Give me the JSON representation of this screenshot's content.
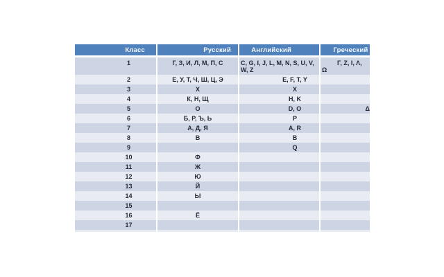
{
  "chart_data": {
    "type": "table",
    "columns": [
      "Класс",
      "Русский",
      "Английский",
      "Греческий"
    ],
    "rows": [
      [
        "1",
        "Г, З, И, Л, М, П, С",
        "C, G, I, J, L, M, N, S, U, V,\nW, Z",
        "Γ, Ζ, Ι, Λ,\nΩ"
      ],
      [
        "2",
        "Е, У, Т, Ч, Ш, Ц, Э",
        "E, F, T, Y",
        ""
      ],
      [
        "3",
        "Х",
        "X",
        ""
      ],
      [
        "4",
        "К, Н, Щ",
        "H, K",
        ""
      ],
      [
        "5",
        "О",
        "D, O",
        "Δ, Ο"
      ],
      [
        "6",
        "Б, Р, Ъ, Ь",
        "P",
        ""
      ],
      [
        "7",
        "А, Д, Я",
        "A, R",
        ""
      ],
      [
        "8",
        "В",
        "B",
        ""
      ],
      [
        "9",
        "",
        "Q",
        ""
      ],
      [
        "10",
        "Ф",
        "",
        ""
      ],
      [
        "11",
        "Ж",
        "",
        ""
      ],
      [
        "12",
        "Ю",
        "",
        ""
      ],
      [
        "13",
        "Й",
        "",
        ""
      ],
      [
        "14",
        "Ы",
        "",
        ""
      ],
      [
        "15",
        "",
        "",
        ""
      ],
      [
        "16",
        "Ё",
        "",
        ""
      ],
      [
        "17",
        "",
        "",
        ""
      ],
      [
        "",
        "",
        "",
        ""
      ]
    ]
  },
  "colors": {
    "header_bg": "#4F81BD",
    "header_text": "#F7F9FC",
    "row_odd": "#CDD4E3",
    "row_even": "#E9EBF3",
    "cell_text": "#242936"
  }
}
